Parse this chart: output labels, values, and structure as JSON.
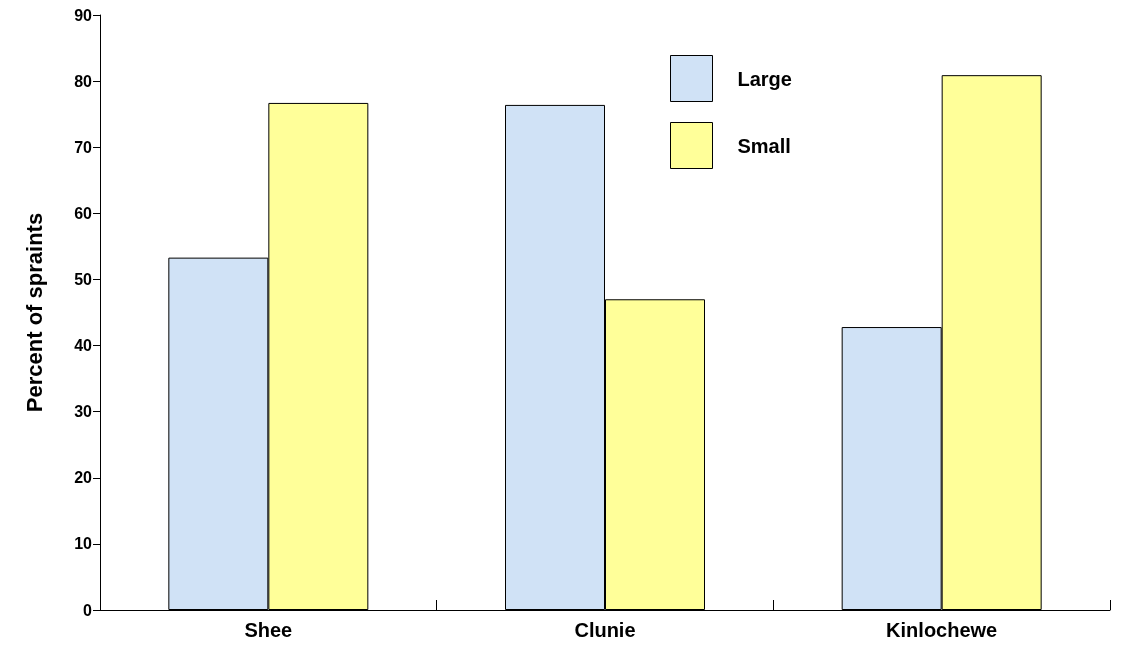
{
  "chart_data": {
    "type": "bar",
    "ylabel": "Percent of spraints",
    "categories": [
      "Shee",
      "Clunie",
      "Kinlochewe"
    ],
    "series": [
      {
        "name": "Large",
        "color": "#d0e2f6",
        "values": [
          53.3,
          76.4,
          42.8
        ]
      },
      {
        "name": "Small",
        "color": "#ffff99",
        "values": [
          76.7,
          47.0,
          80.9
        ]
      }
    ],
    "ylim": [
      0,
      90
    ],
    "yticks": [
      0,
      10,
      20,
      30,
      40,
      50,
      60,
      70,
      80,
      90
    ],
    "grid": false,
    "legend": "top right"
  }
}
